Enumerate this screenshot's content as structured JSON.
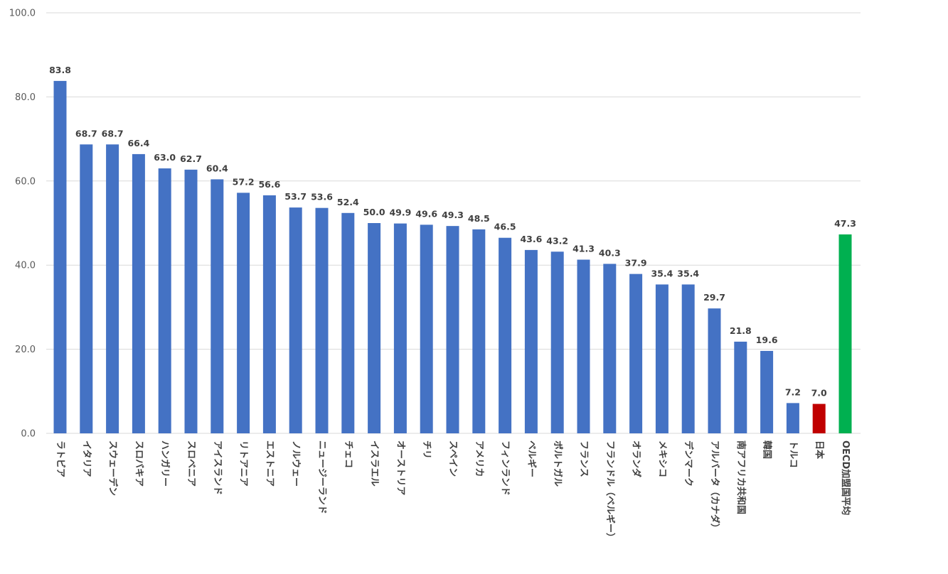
{
  "chart_data": {
    "type": "bar",
    "ylim": [
      0,
      100
    ],
    "yticks": [
      "0.0",
      "20.0",
      "40.0",
      "60.0",
      "80.0",
      "100.0"
    ],
    "grid": true,
    "categories": [
      "ラトビア",
      "イタリア",
      "スウェーデン",
      "スロバキア",
      "ハンガリー",
      "スロベニア",
      "アイスランド",
      "リトアニア",
      "エストニア",
      "ノルウェー",
      "ニュージーランド",
      "チェコ",
      "イスラエル",
      "オーストリア",
      "チリ",
      "スペイン",
      "アメリカ",
      "フィンランド",
      "ベルギー",
      "ポルトガル",
      "フランス",
      "フランドル（ベルギー）",
      "オランダ",
      "メキシコ",
      "デンマーク",
      "アルバータ（カナダ）",
      "南アフリカ共和国",
      "韓国",
      "トルコ",
      "日本",
      "OECD加盟国平均"
    ],
    "values": [
      83.8,
      68.7,
      68.7,
      66.4,
      63.0,
      62.7,
      60.4,
      57.2,
      56.6,
      53.7,
      53.6,
      52.4,
      50.0,
      49.9,
      49.6,
      49.3,
      48.5,
      46.5,
      43.6,
      43.2,
      41.3,
      40.3,
      37.9,
      35.4,
      35.4,
      29.7,
      21.8,
      19.6,
      7.2,
      7.0,
      47.3
    ],
    "value_labels": [
      "83.8",
      "68.7",
      "68.7",
      "66.4",
      "63.0",
      "62.7",
      "60.4",
      "57.2",
      "56.6",
      "53.7",
      "53.6",
      "52.4",
      "50.0",
      "49.9",
      "49.6",
      "49.3",
      "48.5",
      "46.5",
      "43.6",
      "43.2",
      "41.3",
      "40.3",
      "37.9",
      "35.4",
      "35.4",
      "29.7",
      "21.8",
      "19.6",
      "7.2",
      "7.0",
      "47.3"
    ],
    "bar_colors": [
      "#4472c4",
      "#4472c4",
      "#4472c4",
      "#4472c4",
      "#4472c4",
      "#4472c4",
      "#4472c4",
      "#4472c4",
      "#4472c4",
      "#4472c4",
      "#4472c4",
      "#4472c4",
      "#4472c4",
      "#4472c4",
      "#4472c4",
      "#4472c4",
      "#4472c4",
      "#4472c4",
      "#4472c4",
      "#4472c4",
      "#4472c4",
      "#4472c4",
      "#4472c4",
      "#4472c4",
      "#4472c4",
      "#4472c4",
      "#4472c4",
      "#4472c4",
      "#4472c4",
      "#c00000",
      "#00b050"
    ],
    "title": "",
    "xlabel": "",
    "ylabel": ""
  }
}
